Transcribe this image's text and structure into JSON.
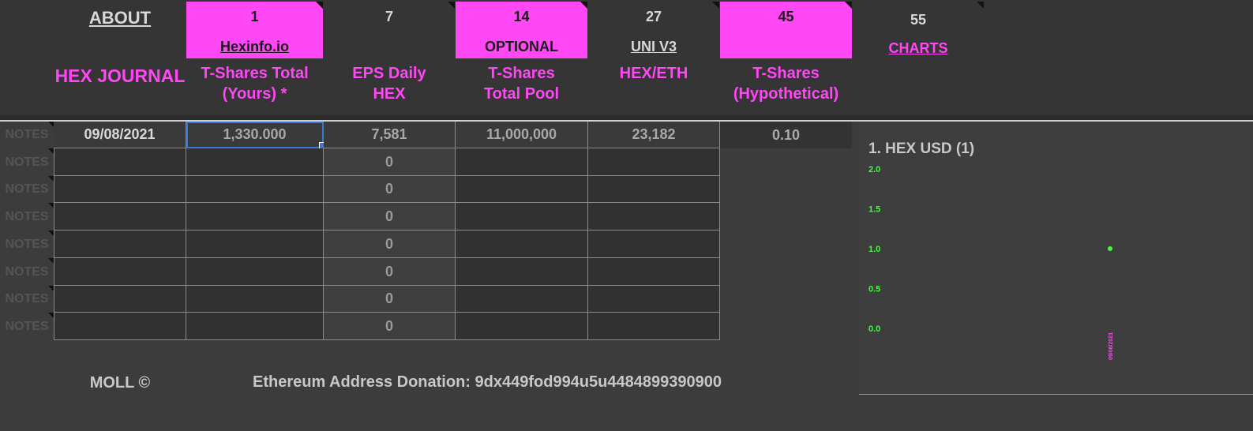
{
  "header": {
    "about_link": "ABOUT",
    "app_title": "HEX JOURNAL",
    "columns": [
      {
        "num": "1",
        "sub": "Hexinfo.io",
        "label_line1": "T-Shares Total",
        "label_line2": "(Yours) *"
      },
      {
        "num": "7",
        "sub": "",
        "label_line1": "EPS Daily",
        "label_line2": "HEX"
      },
      {
        "num": "14",
        "sub": "OPTIONAL",
        "label_line1": "T-Shares",
        "label_line2": "Total Pool"
      },
      {
        "num": "27",
        "sub": "UNI V3",
        "label_line1": "HEX/ETH",
        "label_line2": ""
      },
      {
        "num": "45",
        "sub": "",
        "label_line1": "T-Shares",
        "label_line2": "(Hypothetical)"
      },
      {
        "num": "55",
        "sub": "CHARTS",
        "label_line1": "",
        "label_line2": ""
      }
    ]
  },
  "table": {
    "notes_label": "NOTES",
    "first_row": {
      "date": "09/08/2021",
      "tshares_yours": "1,330.000",
      "eps_daily": "7,581",
      "total_pool": "11,000,000",
      "hex_eth": "23,182",
      "hypothetical": "0.10"
    },
    "eps_rows": [
      "0",
      "0",
      "0",
      "0",
      "0",
      "0",
      "0"
    ]
  },
  "footer": {
    "copyright": "MOLL ©",
    "donation": "Ethereum Address Donation: 9dx449fod994u5u4484899390900"
  },
  "chart_data": {
    "type": "scatter",
    "title": "1. HEX USD (1)",
    "x": [
      "09/08/2021"
    ],
    "y": [
      1.0
    ],
    "ylim": [
      0,
      2
    ],
    "yticks": [
      "2.0",
      "1.5",
      "1.0",
      "0.5",
      "0.0"
    ],
    "xlabel": "",
    "ylabel": "",
    "grid": false,
    "tick_color": "#3bff3b",
    "point_color": "#3bff3b",
    "xtick_color": "#ff47f5"
  },
  "colors": {
    "accent": "#ff47f5",
    "background": "#3c3c3c",
    "selection": "#3a78d8"
  }
}
